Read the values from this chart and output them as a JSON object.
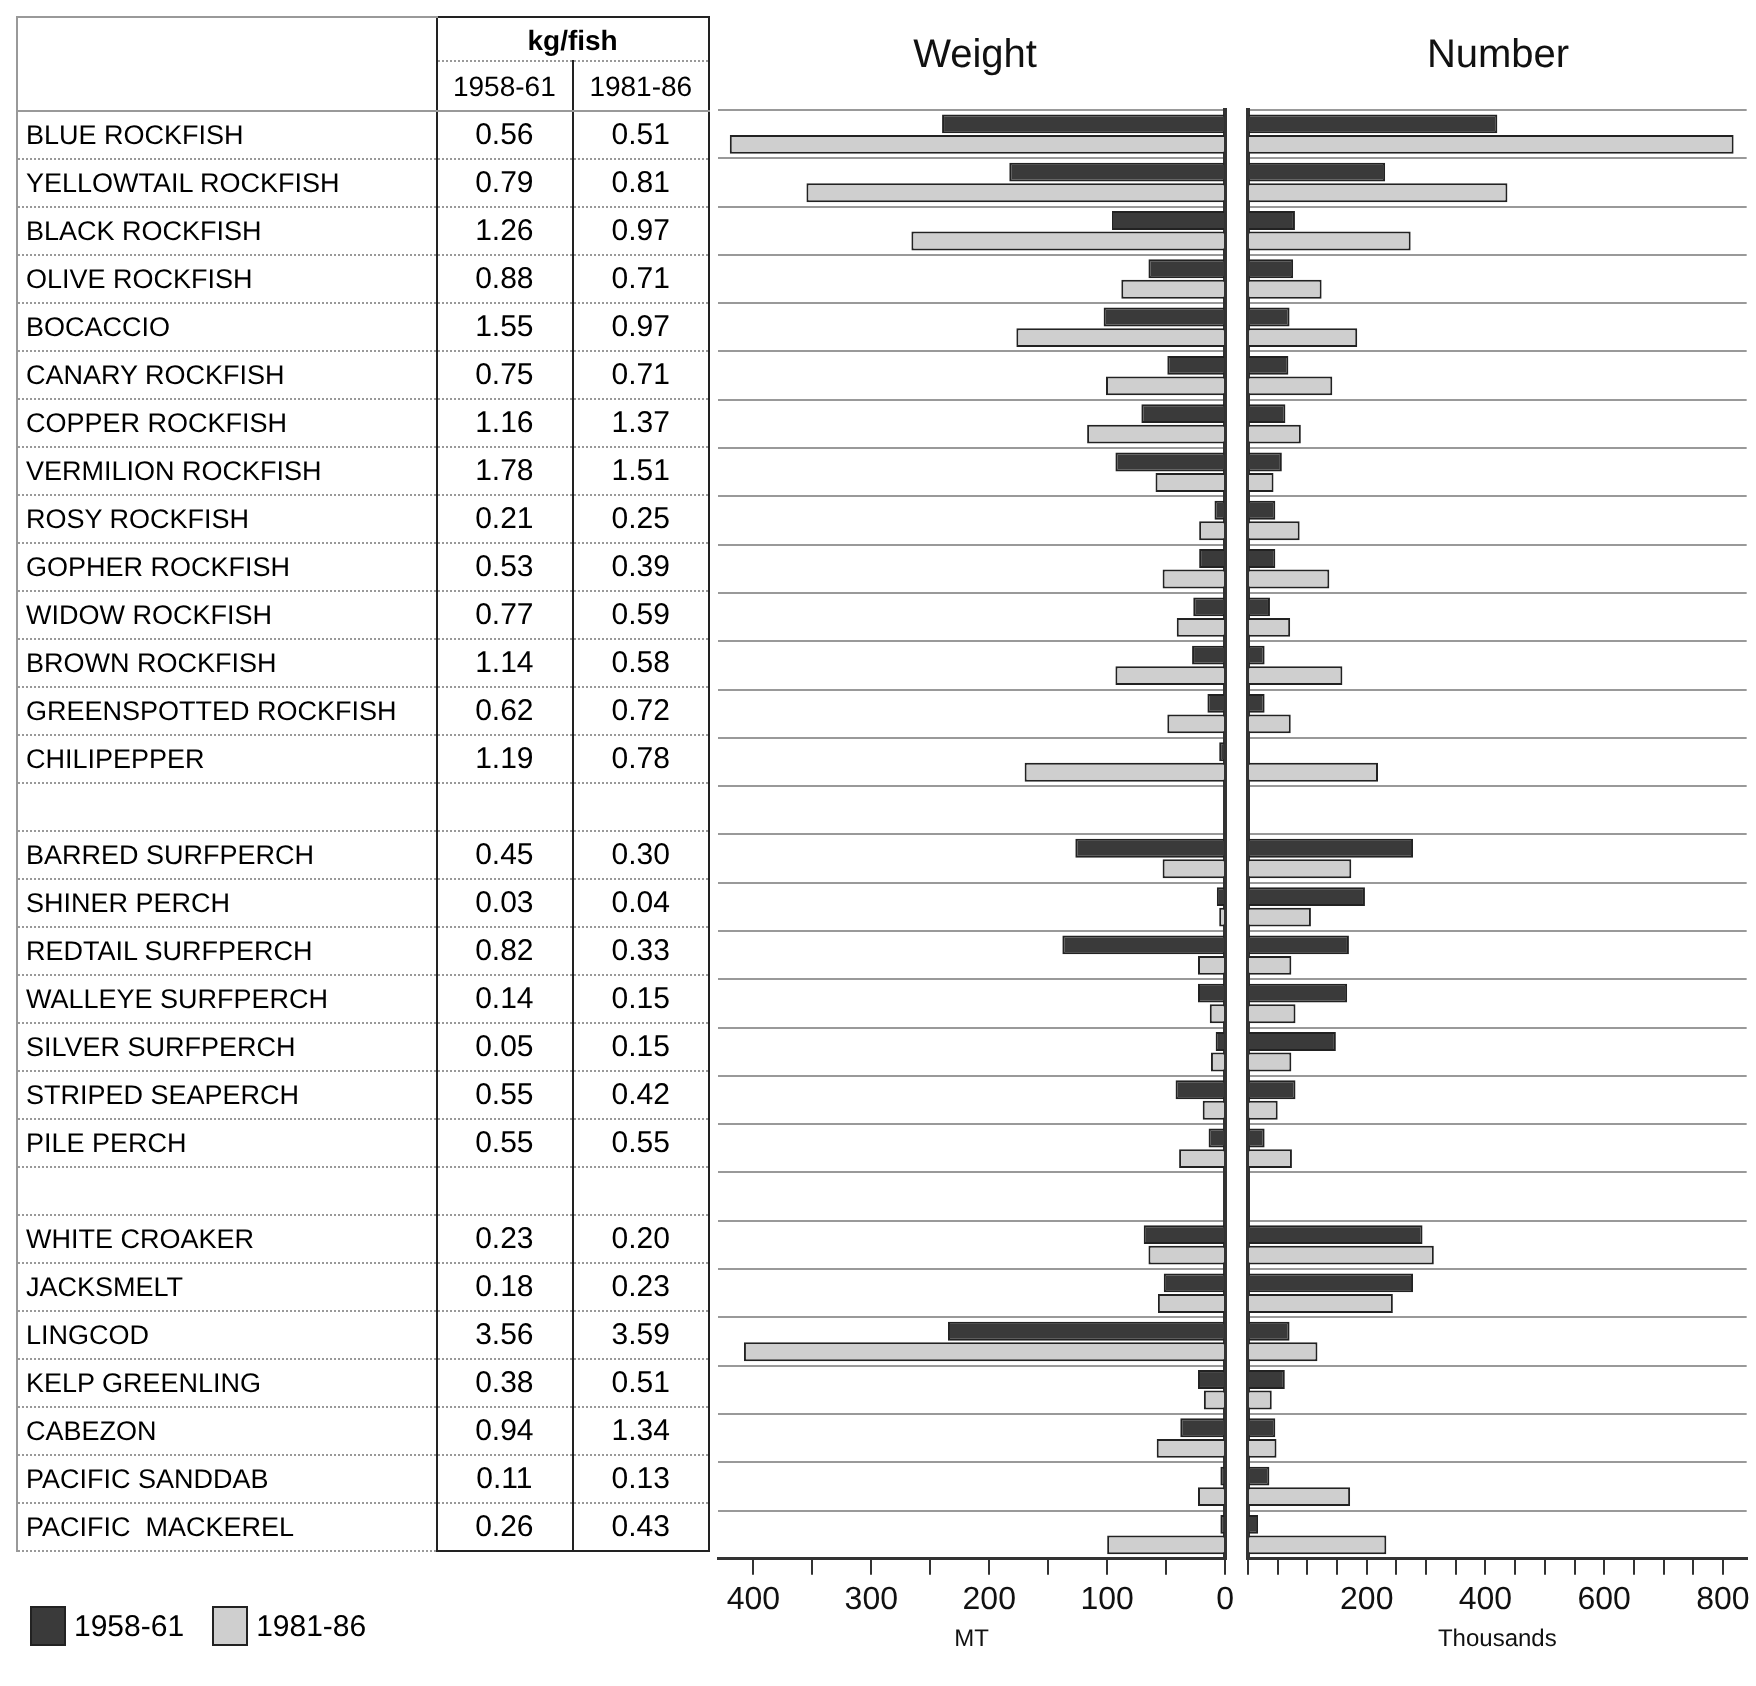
{
  "chart_data": [
    {
      "type": "other",
      "title": "kg/fish",
      "categories": [
        "BLUE ROCKFISH",
        "YELLOWTAIL ROCKFISH",
        "BLACK ROCKFISH",
        "OLIVE ROCKFISH",
        "BOCACCIO",
        "CANARY ROCKFISH",
        "COPPER ROCKFISH",
        "VERMILION ROCKFISH",
        "ROSY ROCKFISH",
        "GOPHER ROCKFISH",
        "WIDOW ROCKFISH",
        "BROWN ROCKFISH",
        "GREENSPOTTED ROCKFISH",
        "CHILIPEPPER",
        null,
        "BARRED SURFPERCH",
        "SHINER PERCH",
        "REDTAIL SURFPERCH",
        "WALLEYE SURFPERCH",
        "SILVER SURFPERCH",
        "STRIPED SEAPERCH",
        "PILE PERCH",
        null,
        "WHITE CROAKER",
        "JACKSMELT",
        "LINGCOD",
        "KELP GREENLING",
        "CABEZON",
        "PACIFIC SANDDAB",
        "PACIFIC  MACKEREL"
      ],
      "series": [
        {
          "name": "1958-61",
          "values": [
            0.56,
            0.79,
            1.26,
            0.88,
            1.55,
            0.75,
            1.16,
            1.78,
            0.21,
            0.53,
            0.77,
            1.14,
            0.62,
            1.19,
            null,
            0.45,
            0.03,
            0.82,
            0.14,
            0.05,
            0.55,
            0.55,
            null,
            0.23,
            0.18,
            3.56,
            0.38,
            0.94,
            0.11,
            0.26
          ],
          "value_labels": [
            "0.56",
            "0.79",
            "1.26",
            "0.88",
            "1.55",
            "0.75",
            "1.16",
            "1.78",
            "0.21",
            "0.53",
            "0.77",
            "1.14",
            "0.62",
            "1.19",
            null,
            "0.45",
            "0.03",
            "0.82",
            "0.14",
            "0.05",
            "0.55",
            "0.55",
            null,
            "0.23",
            "0.18",
            "3.56",
            "0.38",
            "0.94",
            "0.11",
            "0.26"
          ]
        },
        {
          "name": "1981-86",
          "values": [
            0.51,
            0.81,
            0.97,
            0.71,
            0.97,
            0.71,
            1.37,
            1.51,
            0.25,
            0.39,
            0.59,
            0.58,
            0.72,
            0.78,
            null,
            0.3,
            0.04,
            0.33,
            0.15,
            0.15,
            0.42,
            0.55,
            null,
            0.2,
            0.23,
            3.59,
            0.51,
            1.34,
            0.13,
            0.43
          ],
          "value_labels": [
            "0.51",
            "0.81",
            "0.97",
            "0.71",
            "0.97",
            "0.71",
            "1.37",
            "1.51",
            "0.25",
            "0.39",
            "0.59",
            "0.58",
            "0.72",
            "0.78",
            null,
            "0.30",
            "0.04",
            "0.33",
            "0.15",
            "0.15",
            "0.42",
            "0.55",
            null,
            "0.20",
            "0.23",
            "3.59",
            "0.51",
            "1.34",
            "0.13",
            "0.43"
          ]
        }
      ]
    },
    {
      "type": "bar",
      "orientation": "horizontal",
      "title": "Weight",
      "xlabel": "MT",
      "categories": [
        null,
        null,
        null,
        null,
        null,
        null,
        null,
        null,
        null,
        null,
        null,
        null,
        null,
        null,
        null,
        null,
        null,
        null,
        null,
        null,
        null,
        null,
        null,
        null,
        null,
        null,
        null,
        null,
        null,
        null
      ],
      "series": [
        {
          "name": "1958-61",
          "color": "#3a3a3a",
          "values": [
            240,
            183,
            96,
            65,
            103,
            49,
            71,
            93,
            9,
            22,
            27,
            28,
            15,
            5,
            null,
            127,
            7,
            138,
            23,
            8,
            42,
            14,
            null,
            69,
            52,
            235,
            23,
            38,
            4,
            4
          ]
        },
        {
          "name": "1981-86",
          "color": "#cfcfcf",
          "values": [
            420,
            355,
            266,
            88,
            177,
            101,
            117,
            59,
            22,
            53,
            41,
            93,
            49,
            170,
            null,
            53,
            5,
            23,
            13,
            12,
            19,
            39,
            null,
            65,
            57,
            408,
            18,
            58,
            23,
            100
          ]
        }
      ],
      "xlim": [
        430,
        0
      ],
      "xticks": [
        400,
        {
          "value": 350,
          "label": null
        },
        300,
        {
          "value": 250,
          "label": null
        },
        200,
        {
          "value": 150,
          "label": null
        },
        100,
        {
          "value": 50,
          "label": null
        },
        0
      ],
      "grid": "y",
      "tick_labels": "x",
      "legend": "bottom left"
    },
    {
      "type": "bar",
      "orientation": "horizontal",
      "title": "Number",
      "xlabel": "Thousands",
      "categories": [
        null,
        null,
        null,
        null,
        null,
        null,
        null,
        null,
        null,
        null,
        null,
        null,
        null,
        null,
        null,
        null,
        null,
        null,
        null,
        null,
        null,
        null,
        null,
        null,
        null,
        null,
        null,
        null,
        null,
        null
      ],
      "series": [
        {
          "name": "1958-61",
          "color": "#3a3a3a",
          "values": [
            420,
            231,
            79,
            76,
            70,
            68,
            63,
            57,
            46,
            46,
            37,
            28,
            28,
            0,
            null,
            278,
            197,
            170,
            167,
            148,
            80,
            28,
            null,
            294,
            278,
            70,
            62,
            46,
            36,
            17
          ]
        },
        {
          "name": "1981-86",
          "color": "#cfcfcf",
          "values": [
            818,
            437,
            274,
            124,
            184,
            142,
            89,
            43,
            87,
            137,
            71,
            159,
            72,
            219,
            null,
            174,
            106,
            73,
            80,
            73,
            50,
            74,
            null,
            313,
            244,
            117,
            40,
            48,
            172,
            233
          ]
        }
      ],
      "xlim": [
        0,
        840
      ],
      "xticks": [
        {
          "value": 0,
          "label": null
        },
        {
          "value": 50,
          "label": null
        },
        {
          "value": 100,
          "label": null
        },
        {
          "value": 150,
          "label": null
        },
        200,
        {
          "value": 250,
          "label": null
        },
        {
          "value": 300,
          "label": null
        },
        {
          "value": 350,
          "label": null
        },
        400,
        {
          "value": 450,
          "label": null
        },
        {
          "value": 500,
          "label": null
        },
        {
          "value": 550,
          "label": null
        },
        600,
        {
          "value": 650,
          "label": null
        },
        {
          "value": 700,
          "label": null
        },
        {
          "value": 750,
          "label": null
        },
        800
      ],
      "grid": "y",
      "tick_labels": "x"
    }
  ]
}
